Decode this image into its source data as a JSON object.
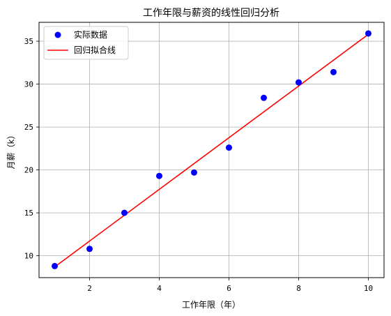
{
  "chart_data": {
    "type": "scatter",
    "title": "工作年限与薪资的线性回归分析",
    "xlabel": "工作年限（年）",
    "ylabel": "月薪（k）",
    "xlim": [
      0.55,
      10.45
    ],
    "ylim": [
      7.45,
      37.2
    ],
    "xticks": [
      2,
      4,
      6,
      8,
      10
    ],
    "yticks": [
      10,
      15,
      20,
      25,
      30,
      35
    ],
    "grid": true,
    "legend_position": "top-left",
    "series": [
      {
        "name": "实际数据",
        "kind": "scatter",
        "color": "#0000ff",
        "x": [
          1,
          2,
          3,
          4,
          5,
          6,
          7,
          8,
          9,
          10
        ],
        "y": [
          8.8,
          10.8,
          15.0,
          19.3,
          19.7,
          22.6,
          28.4,
          30.2,
          31.4,
          35.9
        ]
      },
      {
        "name": "回归拟合线",
        "kind": "line",
        "color": "#ff0000",
        "x": [
          1,
          10
        ],
        "y": [
          8.7,
          35.8
        ]
      }
    ]
  }
}
